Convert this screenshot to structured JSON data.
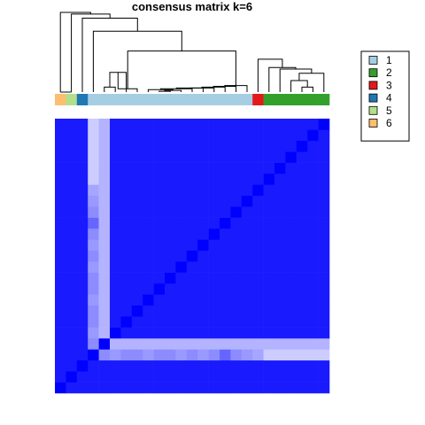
{
  "chart_data": {
    "type": "heatmap",
    "title": "consensus matrix k=6",
    "value_range": [
      0,
      1
    ],
    "color_low": "#FFFFFF",
    "color_high": "#0000FF",
    "cluster_colors": {
      "1": "#A6CEE3",
      "2": "#33A02C",
      "3": "#E31A1C",
      "4": "#1F78B4",
      "5": "#B2DF8A",
      "6": "#FDBF6F"
    },
    "legend": {
      "placement": "top-right",
      "entries": [
        {
          "label": "1",
          "color": "#A6CEE3"
        },
        {
          "label": "2",
          "color": "#33A02C"
        },
        {
          "label": "3",
          "color": "#E31A1C"
        },
        {
          "label": "4",
          "color": "#1F78B4"
        },
        {
          "label": "5",
          "color": "#B2DF8A"
        },
        {
          "label": "6",
          "color": "#FDBF6F"
        }
      ]
    },
    "sample_classes": [
      6,
      5,
      4,
      1,
      1,
      1,
      1,
      1,
      1,
      1,
      1,
      1,
      1,
      1,
      1,
      1,
      1,
      1,
      3,
      2,
      2,
      2,
      2,
      2,
      2
    ],
    "dendrogram": [
      [
        -10,
        -11,
        0.01
      ],
      [
        -12,
        1,
        0.02
      ],
      [
        -9,
        2,
        0.03
      ],
      [
        -13,
        3,
        0.04
      ],
      [
        -14,
        4,
        0.05
      ],
      [
        -15,
        5,
        0.05
      ],
      [
        -16,
        6,
        0.06
      ],
      [
        -17,
        7,
        0.07
      ],
      [
        -18,
        8,
        0.08
      ],
      [
        -5,
        -6,
        0.06
      ],
      [
        -7,
        10,
        0.24
      ],
      [
        -8,
        11,
        0.04
      ],
      [
        9,
        12,
        0.5
      ],
      [
        -4,
        13,
        0.74
      ],
      [
        -23,
        -24,
        0.06
      ],
      [
        -22,
        15,
        0.14
      ],
      [
        -25,
        16,
        0.23
      ],
      [
        -21,
        17,
        0.28
      ],
      [
        -20,
        18,
        0.3
      ],
      [
        -19,
        19,
        0.4
      ],
      [
        -3,
        14,
        0.9
      ],
      [
        -2,
        21,
        0.95
      ],
      [
        -1,
        22,
        0.97
      ],
      [
        -1,
        -2,
        0.0
      ]
    ],
    "matrix": [
      [
        1,
        0.9,
        0.9,
        0.9,
        0.9,
        0.9,
        0.9,
        0.9,
        0.9,
        0.9,
        0.9,
        0.9,
        0.9,
        0.9,
        0.9,
        0.9,
        0.9,
        0.9,
        0.9,
        0.9,
        0.9,
        0.9,
        0.9,
        0.9,
        0.9
      ],
      [
        0.9,
        1,
        0.9,
        0.9,
        0.9,
        0.9,
        0.9,
        0.9,
        0.9,
        0.9,
        0.9,
        0.9,
        0.9,
        0.9,
        0.9,
        0.9,
        0.9,
        0.9,
        0.9,
        0.9,
        0.9,
        0.9,
        0.9,
        0.9,
        0.9
      ],
      [
        0.9,
        0.9,
        1,
        0.9,
        0.9,
        0.9,
        0.9,
        0.9,
        0.9,
        0.9,
        0.9,
        0.9,
        0.9,
        0.9,
        0.9,
        0.9,
        0.9,
        0.9,
        0.9,
        0.9,
        0.9,
        0.9,
        0.9,
        0.9,
        0.9
      ],
      [
        0.9,
        0.9,
        0.9,
        1,
        0.45,
        0.4,
        0.45,
        0.45,
        0.4,
        0.45,
        0.45,
        0.4,
        0.45,
        0.4,
        0.45,
        0.6,
        0.45,
        0.4,
        0.35,
        0.2,
        0.2,
        0.2,
        0.2,
        0.2,
        0.2
      ],
      [
        0.9,
        0.9,
        0.9,
        0.45,
        1,
        0.3,
        0.3,
        0.3,
        0.3,
        0.3,
        0.3,
        0.3,
        0.3,
        0.3,
        0.3,
        0.3,
        0.3,
        0.3,
        0.3,
        0.3,
        0.3,
        0.3,
        0.3,
        0.3,
        0.3
      ],
      [
        0.9,
        0.9,
        0.9,
        0.4,
        0.3,
        1,
        0.9,
        0.9,
        0.9,
        0.9,
        0.9,
        0.9,
        0.9,
        0.9,
        0.9,
        0.9,
        0.9,
        0.9,
        0.9,
        0.9,
        0.9,
        0.9,
        0.9,
        0.9,
        0.9
      ],
      [
        0.9,
        0.9,
        0.9,
        0.45,
        0.3,
        0.9,
        1,
        0.9,
        0.9,
        0.9,
        0.9,
        0.9,
        0.9,
        0.9,
        0.9,
        0.9,
        0.9,
        0.9,
        0.9,
        0.9,
        0.9,
        0.9,
        0.9,
        0.9,
        0.9
      ],
      [
        0.9,
        0.9,
        0.9,
        0.45,
        0.3,
        0.9,
        0.9,
        1,
        0.9,
        0.9,
        0.9,
        0.9,
        0.9,
        0.9,
        0.9,
        0.9,
        0.9,
        0.9,
        0.9,
        0.9,
        0.9,
        0.9,
        0.9,
        0.9,
        0.9
      ],
      [
        0.9,
        0.9,
        0.9,
        0.4,
        0.3,
        0.9,
        0.9,
        0.9,
        1,
        0.9,
        0.9,
        0.9,
        0.9,
        0.9,
        0.9,
        0.9,
        0.9,
        0.9,
        0.9,
        0.9,
        0.9,
        0.9,
        0.9,
        0.9,
        0.9
      ],
      [
        0.9,
        0.9,
        0.9,
        0.45,
        0.3,
        0.9,
        0.9,
        0.9,
        0.9,
        1,
        0.9,
        0.9,
        0.9,
        0.9,
        0.9,
        0.9,
        0.9,
        0.9,
        0.9,
        0.9,
        0.9,
        0.9,
        0.9,
        0.9,
        0.9
      ],
      [
        0.9,
        0.9,
        0.9,
        0.45,
        0.3,
        0.9,
        0.9,
        0.9,
        0.9,
        0.9,
        1,
        0.9,
        0.9,
        0.9,
        0.9,
        0.9,
        0.9,
        0.9,
        0.9,
        0.9,
        0.9,
        0.9,
        0.9,
        0.9,
        0.9
      ],
      [
        0.9,
        0.9,
        0.9,
        0.4,
        0.3,
        0.9,
        0.9,
        0.9,
        0.9,
        0.9,
        0.9,
        1,
        0.9,
        0.9,
        0.9,
        0.9,
        0.9,
        0.9,
        0.9,
        0.9,
        0.9,
        0.9,
        0.9,
        0.9,
        0.9
      ],
      [
        0.9,
        0.9,
        0.9,
        0.45,
        0.3,
        0.9,
        0.9,
        0.9,
        0.9,
        0.9,
        0.9,
        0.9,
        1,
        0.9,
        0.9,
        0.9,
        0.9,
        0.9,
        0.9,
        0.9,
        0.9,
        0.9,
        0.9,
        0.9,
        0.9
      ],
      [
        0.9,
        0.9,
        0.9,
        0.4,
        0.3,
        0.9,
        0.9,
        0.9,
        0.9,
        0.9,
        0.9,
        0.9,
        0.9,
        1,
        0.9,
        0.9,
        0.9,
        0.9,
        0.9,
        0.9,
        0.9,
        0.9,
        0.9,
        0.9,
        0.9
      ],
      [
        0.9,
        0.9,
        0.9,
        0.45,
        0.3,
        0.9,
        0.9,
        0.9,
        0.9,
        0.9,
        0.9,
        0.9,
        0.9,
        0.9,
        1,
        0.9,
        0.9,
        0.9,
        0.9,
        0.9,
        0.9,
        0.9,
        0.9,
        0.9,
        0.9
      ],
      [
        0.9,
        0.9,
        0.9,
        0.6,
        0.3,
        0.9,
        0.9,
        0.9,
        0.9,
        0.9,
        0.9,
        0.9,
        0.9,
        0.9,
        0.9,
        1,
        0.9,
        0.9,
        0.9,
        0.9,
        0.9,
        0.9,
        0.9,
        0.9,
        0.9
      ],
      [
        0.9,
        0.9,
        0.9,
        0.45,
        0.3,
        0.9,
        0.9,
        0.9,
        0.9,
        0.9,
        0.9,
        0.9,
        0.9,
        0.9,
        0.9,
        0.9,
        1,
        0.9,
        0.9,
        0.9,
        0.9,
        0.9,
        0.9,
        0.9,
        0.9
      ],
      [
        0.9,
        0.9,
        0.9,
        0.4,
        0.3,
        0.9,
        0.9,
        0.9,
        0.9,
        0.9,
        0.9,
        0.9,
        0.9,
        0.9,
        0.9,
        0.9,
        0.9,
        1,
        0.9,
        0.9,
        0.9,
        0.9,
        0.9,
        0.9,
        0.9
      ],
      [
        0.9,
        0.9,
        0.9,
        0.35,
        0.3,
        0.9,
        0.9,
        0.9,
        0.9,
        0.9,
        0.9,
        0.9,
        0.9,
        0.9,
        0.9,
        0.9,
        0.9,
        0.9,
        1,
        0.9,
        0.9,
        0.9,
        0.9,
        0.9,
        0.9
      ],
      [
        0.9,
        0.9,
        0.9,
        0.2,
        0.3,
        0.9,
        0.9,
        0.9,
        0.9,
        0.9,
        0.9,
        0.9,
        0.9,
        0.9,
        0.9,
        0.9,
        0.9,
        0.9,
        0.9,
        1,
        0.9,
        0.9,
        0.9,
        0.9,
        0.9
      ],
      [
        0.9,
        0.9,
        0.9,
        0.2,
        0.3,
        0.9,
        0.9,
        0.9,
        0.9,
        0.9,
        0.9,
        0.9,
        0.9,
        0.9,
        0.9,
        0.9,
        0.9,
        0.9,
        0.9,
        0.9,
        1,
        0.9,
        0.9,
        0.9,
        0.9
      ],
      [
        0.9,
        0.9,
        0.9,
        0.2,
        0.3,
        0.9,
        0.9,
        0.9,
        0.9,
        0.9,
        0.9,
        0.9,
        0.9,
        0.9,
        0.9,
        0.9,
        0.9,
        0.9,
        0.9,
        0.9,
        0.9,
        1,
        0.9,
        0.9,
        0.9
      ],
      [
        0.9,
        0.9,
        0.9,
        0.2,
        0.3,
        0.9,
        0.9,
        0.9,
        0.9,
        0.9,
        0.9,
        0.9,
        0.9,
        0.9,
        0.9,
        0.9,
        0.9,
        0.9,
        0.9,
        0.9,
        0.9,
        0.9,
        1,
        0.9,
        0.9
      ],
      [
        0.9,
        0.9,
        0.9,
        0.2,
        0.3,
        0.9,
        0.9,
        0.9,
        0.9,
        0.9,
        0.9,
        0.9,
        0.9,
        0.9,
        0.9,
        0.9,
        0.9,
        0.9,
        0.9,
        0.9,
        0.9,
        0.9,
        0.9,
        1,
        0.9
      ],
      [
        0.9,
        0.9,
        0.9,
        0.2,
        0.3,
        0.9,
        0.9,
        0.9,
        0.9,
        0.9,
        0.9,
        0.9,
        0.9,
        0.9,
        0.9,
        0.9,
        0.9,
        0.9,
        0.9,
        0.9,
        0.9,
        0.9,
        0.9,
        0.9,
        1
      ]
    ]
  }
}
